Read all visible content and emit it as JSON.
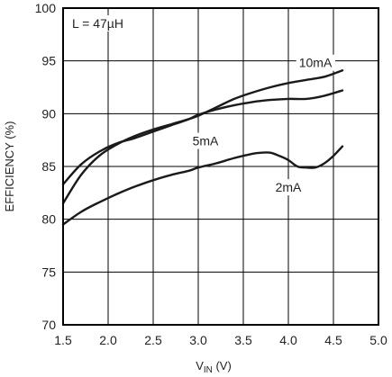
{
  "chart_data": {
    "type": "line",
    "xlabel": {
      "main": "V",
      "sub": "IN",
      "unit": " (V)"
    },
    "ylabel": "EFFICIENCY (%)",
    "xlim": [
      1.5,
      5.0
    ],
    "ylim": [
      70,
      100
    ],
    "x_ticks": [
      1.5,
      2.0,
      2.5,
      3.0,
      3.5,
      4.0,
      4.5,
      5.0
    ],
    "x_tick_labels": [
      "1.5",
      "2.0",
      "2.5",
      "3.0",
      "3.5",
      "4.0",
      "4.5",
      "5.0"
    ],
    "y_ticks": [
      70,
      75,
      80,
      85,
      90,
      95,
      100
    ],
    "y_tick_labels": [
      "70",
      "75",
      "80",
      "85",
      "90",
      "95",
      "100"
    ],
    "grid": true,
    "annotation": "L = 47µH",
    "series": [
      {
        "name": "10mA",
        "label_at": [
          4.3,
          94.4
        ],
        "x": [
          1.5,
          1.7,
          1.9,
          2.1,
          2.3,
          2.5,
          2.7,
          2.9,
          3.0,
          3.2,
          3.4,
          3.6,
          3.8,
          4.0,
          4.2,
          4.4,
          4.6
        ],
        "y": [
          81.5,
          84.2,
          86.0,
          87.1,
          87.9,
          88.5,
          89.0,
          89.5,
          89.8,
          90.6,
          91.4,
          92.0,
          92.5,
          92.9,
          93.2,
          93.5,
          94.1
        ]
      },
      {
        "name": "5mA",
        "label_at": [
          3.08,
          87.0
        ],
        "x": [
          1.5,
          1.7,
          1.9,
          2.1,
          2.3,
          2.5,
          2.7,
          2.9,
          3.0,
          3.2,
          3.4,
          3.6,
          3.8,
          4.0,
          4.2,
          4.4,
          4.6
        ],
        "y": [
          83.3,
          85.2,
          86.4,
          87.2,
          87.7,
          88.3,
          88.9,
          89.5,
          89.9,
          90.4,
          90.8,
          91.1,
          91.3,
          91.4,
          91.4,
          91.7,
          92.2
        ]
      },
      {
        "name": "2mA",
        "label_at": [
          4.0,
          82.6
        ],
        "x": [
          1.5,
          1.7,
          1.9,
          2.1,
          2.3,
          2.5,
          2.7,
          2.9,
          3.0,
          3.2,
          3.4,
          3.6,
          3.7,
          3.8,
          3.9,
          4.0,
          4.1,
          4.2,
          4.3,
          4.4,
          4.5,
          4.6
        ],
        "y": [
          79.5,
          80.7,
          81.6,
          82.4,
          83.1,
          83.7,
          84.2,
          84.6,
          84.9,
          85.3,
          85.8,
          86.2,
          86.3,
          86.3,
          86.0,
          85.6,
          85.0,
          84.9,
          84.9,
          85.3,
          86.0,
          86.9
        ]
      }
    ]
  }
}
